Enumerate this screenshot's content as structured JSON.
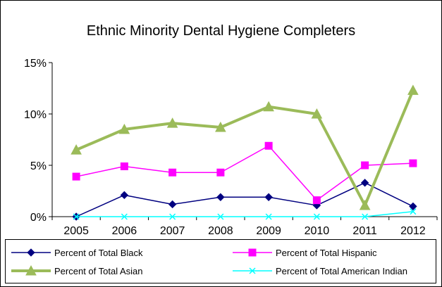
{
  "chart_data": {
    "type": "line",
    "title": "Ethnic Minority Dental Hygiene Completers",
    "xlabel": "",
    "ylabel": "",
    "categories": [
      "2005",
      "2006",
      "2007",
      "2008",
      "2009",
      "2010",
      "2011",
      "2012"
    ],
    "ylim": [
      0,
      15
    ],
    "yticks": [
      0,
      5,
      10,
      15
    ],
    "ytick_labels": [
      "0%",
      "5%",
      "10%",
      "15%"
    ],
    "grid": false,
    "legend": "bottom",
    "series": [
      {
        "name": "Percent of Total Black",
        "color": "#000080",
        "marker": "diamond",
        "values": [
          0,
          2.1,
          1.2,
          1.9,
          1.9,
          1.1,
          3.3,
          1.0
        ]
      },
      {
        "name": "Percent of Total Hispanic",
        "color": "#FF00FF",
        "marker": "square",
        "values": [
          3.9,
          4.9,
          4.3,
          4.3,
          6.9,
          1.6,
          5.0,
          5.2
        ]
      },
      {
        "name": "Percent of Total Asian",
        "color": "#9BBB59",
        "marker": "triangle",
        "values": [
          6.5,
          8.5,
          9.1,
          8.7,
          10.7,
          10.0,
          1.1,
          12.3
        ]
      },
      {
        "name": "Percent of Total American Indian",
        "color": "#00FFFF",
        "marker": "x",
        "values": [
          0,
          0,
          0,
          0,
          0,
          0,
          0,
          0.5
        ]
      }
    ]
  }
}
